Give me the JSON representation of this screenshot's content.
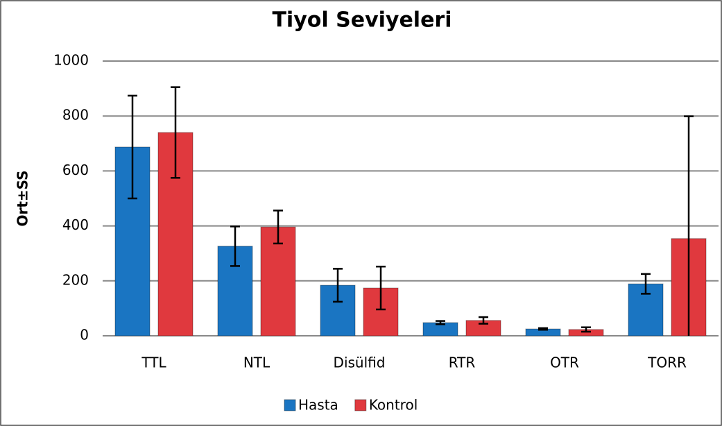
{
  "chart_data": {
    "type": "bar",
    "title": "Tiyol Seviyeleri",
    "y_label": "Ort±SS",
    "categories": [
      "TTL",
      "NTL",
      "Disülfid",
      "RTR",
      "OTR",
      "TORR"
    ],
    "series": [
      {
        "name": "Hasta",
        "color": "#1a75c2",
        "values": [
          687,
          326,
          184,
          48,
          25,
          189
        ],
        "errors": [
          187,
          72,
          60,
          6,
          3,
          36
        ]
      },
      {
        "name": "Kontrol",
        "color": "#e0393e",
        "values": [
          740,
          396,
          174,
          56,
          23,
          354
        ],
        "errors": [
          165,
          60,
          78,
          12,
          8,
          445
        ]
      }
    ],
    "ylim": [
      0,
      1000
    ],
    "yticks": [
      0,
      200,
      400,
      600,
      800,
      1000
    ],
    "grid": true,
    "legend": "bottom"
  }
}
